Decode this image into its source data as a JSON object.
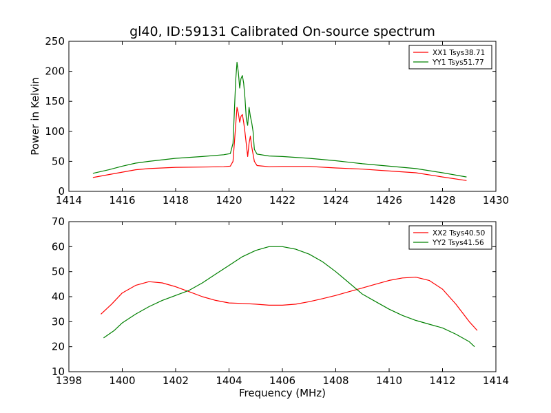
{
  "title": "gl40, ID:59131 Calibrated On-source spectrum",
  "chart_data": [
    {
      "type": "line",
      "xlabel": "",
      "ylabel": "Power in Kelvin",
      "xlim": [
        1414,
        1430
      ],
      "ylim": [
        0,
        250
      ],
      "xticks": [
        1414,
        1416,
        1418,
        1420,
        1422,
        1424,
        1426,
        1428,
        1430
      ],
      "yticks": [
        0,
        50,
        100,
        150,
        200,
        250
      ],
      "legend_position": "top-right",
      "series": [
        {
          "name": "XX1 Tsys38.71",
          "color": "#ff0000",
          "points": [
            [
              1414.9,
              23
            ],
            [
              1415.5,
              28
            ],
            [
              1416,
              32
            ],
            [
              1416.5,
              36
            ],
            [
              1417,
              38
            ],
            [
              1418,
              40
            ],
            [
              1419,
              40.5
            ],
            [
              1419.8,
              41
            ],
            [
              1420.05,
              42
            ],
            [
              1420.15,
              50
            ],
            [
              1420.25,
              110
            ],
            [
              1420.3,
              140
            ],
            [
              1420.35,
              130
            ],
            [
              1420.4,
              115
            ],
            [
              1420.45,
              125
            ],
            [
              1420.5,
              128
            ],
            [
              1420.55,
              115
            ],
            [
              1420.6,
              98
            ],
            [
              1420.65,
              78
            ],
            [
              1420.7,
              58
            ],
            [
              1420.75,
              80
            ],
            [
              1420.8,
              92
            ],
            [
              1420.85,
              75
            ],
            [
              1420.9,
              62
            ],
            [
              1420.95,
              50
            ],
            [
              1421.05,
              43
            ],
            [
              1421.5,
              41
            ],
            [
              1422,
              41.5
            ],
            [
              1423,
              41.5
            ],
            [
              1424,
              39
            ],
            [
              1425,
              37
            ],
            [
              1426,
              34
            ],
            [
              1427,
              31
            ],
            [
              1428,
              24
            ],
            [
              1428.9,
              18
            ]
          ]
        },
        {
          "name": "YY1 Tsys51.77",
          "color": "#008000",
          "points": [
            [
              1414.9,
              30
            ],
            [
              1415.5,
              36
            ],
            [
              1416,
              42
            ],
            [
              1416.5,
              47
            ],
            [
              1417,
              50
            ],
            [
              1418,
              55
            ],
            [
              1419,
              58
            ],
            [
              1419.8,
              61
            ],
            [
              1420.05,
              63
            ],
            [
              1420.15,
              80
            ],
            [
              1420.25,
              185
            ],
            [
              1420.3,
              215
            ],
            [
              1420.35,
              198
            ],
            [
              1420.4,
              172
            ],
            [
              1420.45,
              188
            ],
            [
              1420.5,
              193
            ],
            [
              1420.55,
              180
            ],
            [
              1420.6,
              155
            ],
            [
              1420.65,
              120
            ],
            [
              1420.7,
              110
            ],
            [
              1420.75,
              140
            ],
            [
              1420.8,
              125
            ],
            [
              1420.85,
              115
            ],
            [
              1420.9,
              100
            ],
            [
              1420.95,
              70
            ],
            [
              1421.05,
              62
            ],
            [
              1421.5,
              59
            ],
            [
              1422,
              58
            ],
            [
              1423,
              55
            ],
            [
              1424,
              51
            ],
            [
              1425,
              46
            ],
            [
              1426,
              42
            ],
            [
              1427,
              38
            ],
            [
              1428,
              31
            ],
            [
              1428.9,
              24
            ]
          ]
        }
      ]
    },
    {
      "type": "line",
      "xlabel": "Frequency (MHz)",
      "ylabel": "",
      "xlim": [
        1398,
        1414
      ],
      "ylim": [
        10,
        70
      ],
      "xticks": [
        1398,
        1400,
        1402,
        1404,
        1406,
        1408,
        1410,
        1412,
        1414
      ],
      "yticks": [
        10,
        20,
        30,
        40,
        50,
        60,
        70
      ],
      "legend_position": "top-right",
      "series": [
        {
          "name": "XX2 Tsys40.50",
          "color": "#ff0000",
          "points": [
            [
              1399.2,
              33
            ],
            [
              1399.6,
              37
            ],
            [
              1400,
              41.5
            ],
            [
              1400.5,
              44.5
            ],
            [
              1401,
              46
            ],
            [
              1401.5,
              45.5
            ],
            [
              1402,
              44
            ],
            [
              1402.5,
              42
            ],
            [
              1403,
              40
            ],
            [
              1403.5,
              38.5
            ],
            [
              1404,
              37.5
            ],
            [
              1404.5,
              37.3
            ],
            [
              1405,
              37
            ],
            [
              1405.5,
              36.6
            ],
            [
              1406,
              36.6
            ],
            [
              1406.5,
              37
            ],
            [
              1407,
              38
            ],
            [
              1407.5,
              39.2
            ],
            [
              1408,
              40.5
            ],
            [
              1408.5,
              42
            ],
            [
              1409,
              43.5
            ],
            [
              1409.5,
              45
            ],
            [
              1410,
              46.5
            ],
            [
              1410.5,
              47.5
            ],
            [
              1411,
              47.8
            ],
            [
              1411.5,
              46.5
            ],
            [
              1412,
              43
            ],
            [
              1412.5,
              37
            ],
            [
              1413,
              30
            ],
            [
              1413.3,
              26.5
            ]
          ]
        },
        {
          "name": "YY2 Tsys41.56",
          "color": "#008000",
          "points": [
            [
              1399.3,
              23.5
            ],
            [
              1399.7,
              26.5
            ],
            [
              1400,
              29.5
            ],
            [
              1400.5,
              33
            ],
            [
              1401,
              36
            ],
            [
              1401.5,
              38.5
            ],
            [
              1402,
              40.5
            ],
            [
              1402.5,
              42.5
            ],
            [
              1403,
              45.5
            ],
            [
              1403.5,
              49
            ],
            [
              1404,
              52.5
            ],
            [
              1404.5,
              56
            ],
            [
              1405,
              58.5
            ],
            [
              1405.5,
              60
            ],
            [
              1406,
              60
            ],
            [
              1406.5,
              59
            ],
            [
              1407,
              57
            ],
            [
              1407.5,
              54
            ],
            [
              1408,
              50
            ],
            [
              1408.5,
              45.5
            ],
            [
              1409,
              41
            ],
            [
              1409.5,
              38
            ],
            [
              1410,
              35
            ],
            [
              1410.5,
              32.5
            ],
            [
              1411,
              30.5
            ],
            [
              1411.5,
              29
            ],
            [
              1412,
              27.5
            ],
            [
              1412.5,
              25
            ],
            [
              1413,
              22
            ],
            [
              1413.2,
              20
            ]
          ]
        }
      ]
    }
  ]
}
